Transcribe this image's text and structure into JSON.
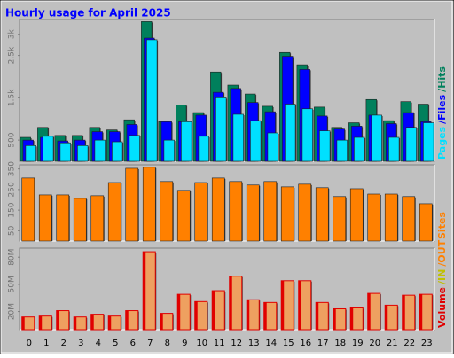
{
  "chart_data": [
    {
      "type": "bar",
      "title": "Hourly usage for April 2025",
      "ylim": [
        0,
        3350
      ],
      "yticks": [
        {
          "value": 500,
          "label": "500"
        },
        {
          "value": 1500,
          "label": "1.5k"
        },
        {
          "value": 2500,
          "label": "2.5k"
        },
        {
          "value": 3000,
          "label": "3k"
        }
      ],
      "series": [
        {
          "name": "/Hits",
          "color": "#00805c",
          "values": [
            565,
            800,
            610,
            610,
            800,
            740,
            980,
            3300,
            935,
            1330,
            1150,
            2110,
            1800,
            1590,
            1300,
            2570,
            2280,
            1280,
            800,
            910,
            1460,
            960,
            1410,
            1350
          ]
        },
        {
          "name": "/Files",
          "color": "#0000ff",
          "values": [
            500,
            565,
            480,
            500,
            700,
            700,
            870,
            2910,
            935,
            935,
            1090,
            1630,
            1720,
            1390,
            1170,
            2480,
            2170,
            1070,
            760,
            830,
            1090,
            890,
            1150,
            935
          ]
        },
        {
          "name": "Pages",
          "color": "#00e0ff",
          "values": [
            370,
            590,
            435,
            370,
            500,
            460,
            610,
            2870,
            500,
            935,
            590,
            1500,
            1110,
            960,
            670,
            1350,
            1240,
            720,
            500,
            565,
            1090,
            565,
            800,
            910
          ]
        }
      ]
    },
    {
      "type": "bar",
      "ylim": [
        0,
        370
      ],
      "yticks": [
        50,
        150,
        250,
        350
      ],
      "series": [
        {
          "name": "Sites",
          "color": "#ff8000",
          "values": [
            306,
            224,
            224,
            207,
            220,
            284,
            353,
            358,
            289,
            246,
            284,
            306,
            289,
            272,
            289,
            263,
            276,
            259,
            216,
            254,
            228,
            228,
            216,
            181
          ]
        }
      ]
    },
    {
      "type": "bar",
      "ylim": [
        0,
        90
      ],
      "yticks": [
        {
          "value": 20,
          "label": "20M"
        },
        {
          "value": 50,
          "label": "50M"
        },
        {
          "value": 80,
          "label": "80M"
        }
      ],
      "categories": [
        "0",
        "1",
        "2",
        "3",
        "4",
        "5",
        "6",
        "7",
        "8",
        "9",
        "10",
        "11",
        "12",
        "13",
        "14",
        "15",
        "16",
        "17",
        "18",
        "19",
        "20",
        "21",
        "22",
        "23"
      ],
      "series": [
        {
          "name": "Volume",
          "color": "#e00000",
          "values": [
            14,
            15,
            21,
            14,
            17,
            15,
            21,
            86,
            18,
            39,
            31,
            43,
            59,
            33,
            30,
            54,
            54,
            30,
            23,
            24,
            40,
            27,
            38,
            39
          ]
        }
      ],
      "extra_legend": [
        {
          "name": "/IN",
          "color": "#c0c000"
        },
        {
          "name": "/OUT",
          "color": "#ff8000"
        }
      ]
    }
  ]
}
